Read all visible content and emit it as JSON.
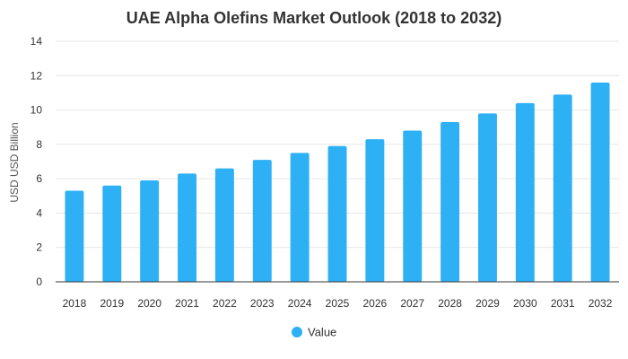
{
  "chart_data": {
    "type": "bar",
    "title": "UAE Alpha Olefins Market Outlook (2018 to 2032)",
    "xlabel": "",
    "ylabel": "USD USD Billion",
    "categories": [
      "2018",
      "2019",
      "2020",
      "2021",
      "2022",
      "2023",
      "2024",
      "2025",
      "2026",
      "2027",
      "2028",
      "2029",
      "2030",
      "2031",
      "2032"
    ],
    "series": [
      {
        "name": "Value",
        "values": [
          5.3,
          5.6,
          5.9,
          6.3,
          6.6,
          7.1,
          7.5,
          7.9,
          8.3,
          8.8,
          9.3,
          9.8,
          10.4,
          10.9,
          11.6
        ]
      }
    ],
    "ylim": [
      0,
      14
    ],
    "yticks": [
      "0",
      "2",
      "4",
      "6",
      "8",
      "10",
      "12",
      "14"
    ],
    "grid": true,
    "legend": "bottom-center",
    "colors": {
      "bar": "#2EB0F5"
    }
  }
}
